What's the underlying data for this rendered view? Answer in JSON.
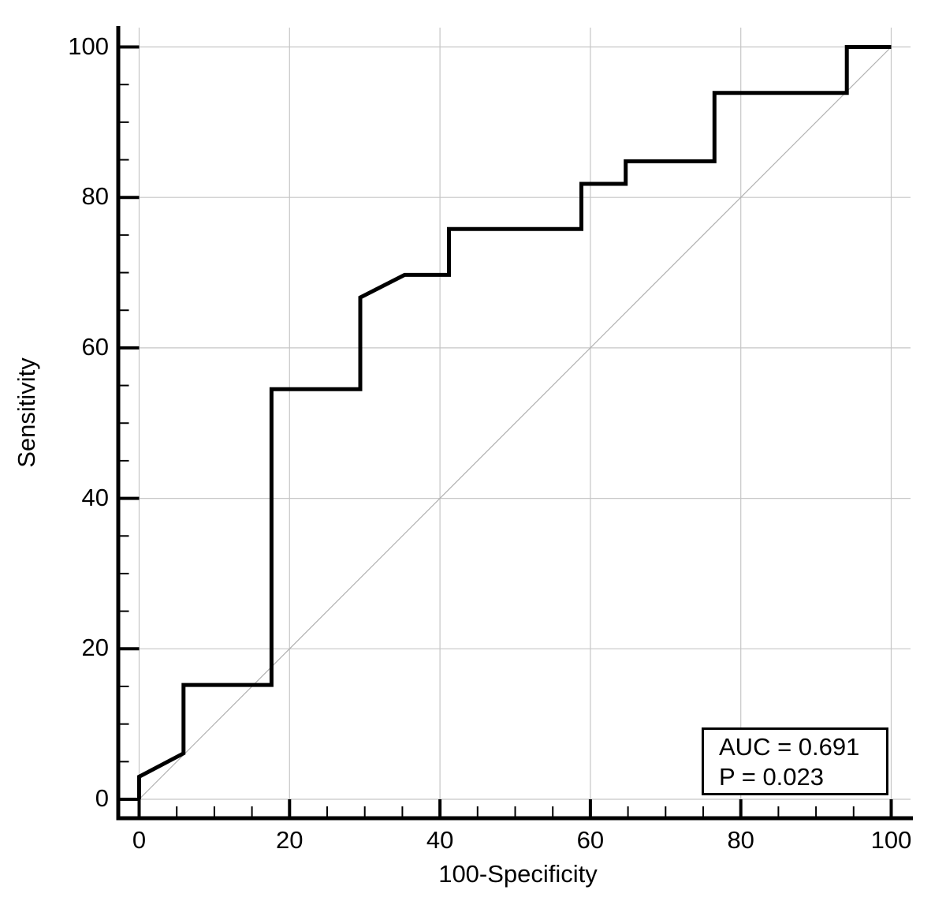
{
  "chart_data": {
    "type": "line",
    "subtype": "roc-curve",
    "title": "",
    "xlabel": "100-Specificity",
    "ylabel": "Sensitivity",
    "xlim": [
      0,
      100
    ],
    "ylim": [
      0,
      100
    ],
    "x_ticks_major": [
      0,
      20,
      40,
      60,
      80,
      100
    ],
    "y_ticks_major": [
      0,
      20,
      40,
      60,
      80,
      100
    ],
    "minor_tick_step": 5,
    "grid": true,
    "legend_position": "none",
    "series": [
      {
        "name": "ROC curve",
        "color": "#000000",
        "points": [
          [
            0,
            0
          ],
          [
            0,
            3.0
          ],
          [
            5.9,
            6.1
          ],
          [
            5.9,
            15.2
          ],
          [
            17.6,
            15.2
          ],
          [
            17.6,
            54.5
          ],
          [
            29.4,
            54.5
          ],
          [
            29.4,
            66.7
          ],
          [
            35.3,
            69.7
          ],
          [
            41.2,
            69.7
          ],
          [
            41.2,
            75.8
          ],
          [
            58.8,
            75.8
          ],
          [
            58.8,
            81.8
          ],
          [
            64.7,
            81.8
          ],
          [
            64.7,
            84.8
          ],
          [
            76.5,
            84.8
          ],
          [
            76.5,
            93.9
          ],
          [
            94.1,
            93.9
          ],
          [
            94.1,
            100
          ],
          [
            100,
            100
          ]
        ]
      },
      {
        "name": "reference diagonal",
        "color": "#b0b0b0",
        "points": [
          [
            0,
            0
          ],
          [
            100,
            100
          ]
        ]
      }
    ],
    "annotation": {
      "line1": "AUC = 0.691",
      "line2": "P = 0.023"
    },
    "auc": 0.691,
    "p_value": 0.023
  },
  "colors": {
    "curve": "#000000",
    "axis": "#000000",
    "grid": "#c6c6c6",
    "diagonal": "#b0b0b0",
    "background": "#ffffff"
  }
}
